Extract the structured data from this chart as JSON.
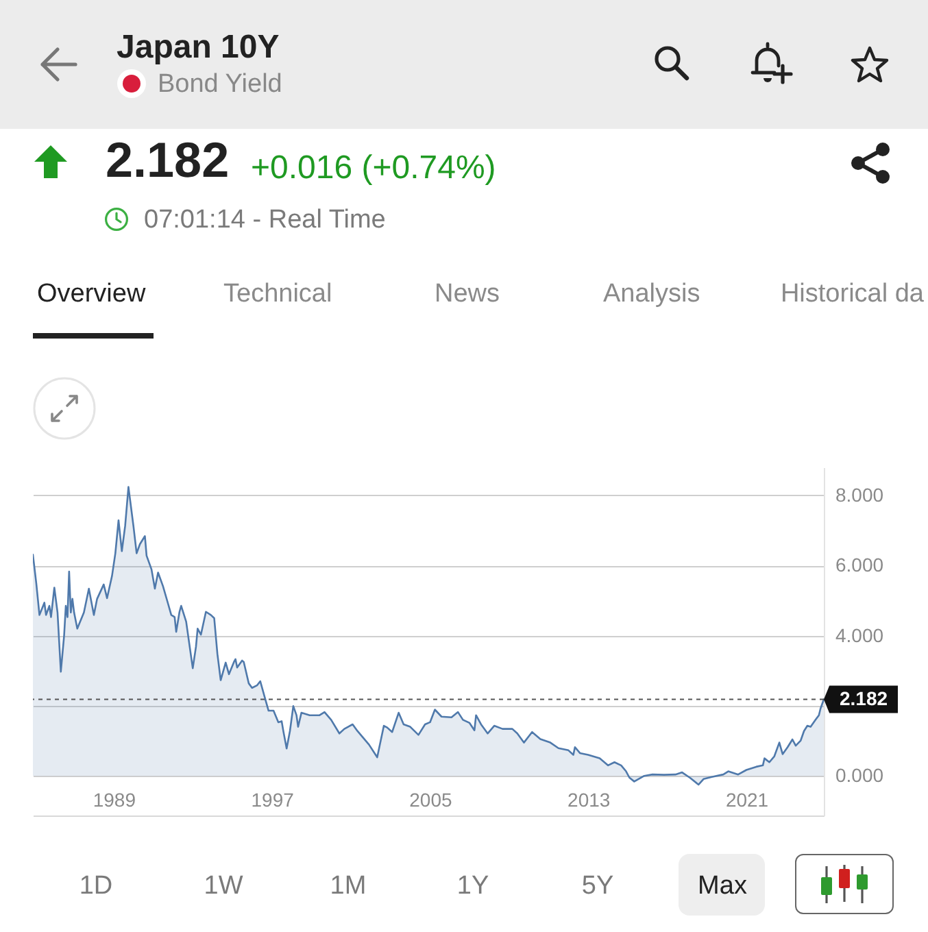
{
  "chart_data": {
    "type": "area",
    "title": "Japan 10Y",
    "subtitle": "Bond Yield",
    "annotations": [
      "2.182",
      "+0.016 (+0.74%)",
      "07:01:14 - Real Time",
      "Overview",
      "Technical",
      "News",
      "Analysis",
      "Historical da",
      "1D",
      "1W",
      "1M",
      "1Y",
      "5Y",
      "Max"
    ],
    "x": [
      "1984-12",
      "1985-02",
      "1985-04",
      "1985-07",
      "1985-08",
      "1985-10",
      "1985-11",
      "1986-01",
      "1986-03",
      "1986-05",
      "1986-07",
      "1986-08",
      "1986-09",
      "1986-10",
      "1986-11",
      "1986-12",
      "1987-01",
      "1987-03",
      "1987-07",
      "1987-10",
      "1988-01",
      "1988-03",
      "1988-07",
      "1988-09",
      "1988-12",
      "1989-02",
      "1989-04",
      "1989-06",
      "1989-08",
      "1989-10",
      "1990-01",
      "1990-03",
      "1990-05",
      "1990-08",
      "1990-09",
      "1990-12",
      "1991-02",
      "1991-04",
      "1991-07",
      "1991-10",
      "1991-12",
      "1992-02",
      "1992-03",
      "1992-05",
      "1992-06",
      "1992-09",
      "1993-01",
      "1993-03",
      "1993-04",
      "1993-06",
      "1993-09",
      "1993-12",
      "1994-02",
      "1994-04",
      "1994-06",
      "1994-09",
      "1994-11",
      "1995-02",
      "1995-03",
      "1995-04",
      "1995-07",
      "1995-08",
      "1995-11",
      "1996-01",
      "1996-04",
      "1996-06",
      "1996-09",
      "1996-11",
      "1997-02",
      "1997-05",
      "1997-07",
      "1997-08",
      "1997-10",
      "1997-12",
      "1998-02",
      "1998-04",
      "1998-05",
      "1998-07",
      "1998-12",
      "1999-06",
      "1999-09",
      "2000-01",
      "2000-06",
      "2000-09",
      "2001-02",
      "2001-05",
      "2001-12",
      "2002-05",
      "2002-09",
      "2002-11",
      "2003-02",
      "2003-06",
      "2003-09",
      "2004-01",
      "2004-06",
      "2004-10",
      "2005-01",
      "2005-04",
      "2005-08",
      "2006-02",
      "2006-06",
      "2006-09",
      "2007-01",
      "2007-04",
      "2007-05",
      "2007-08",
      "2007-12",
      "2008-04",
      "2008-09",
      "2009-03",
      "2009-06",
      "2009-10",
      "2010-03",
      "2010-08",
      "2011-02",
      "2011-07",
      "2012-01",
      "2012-04",
      "2012-05",
      "2012-08",
      "2013-01",
      "2013-08",
      "2014-01",
      "2014-05",
      "2014-09",
      "2014-12",
      "2015-02",
      "2015-05",
      "2015-11",
      "2016-04",
      "2016-11",
      "2017-06",
      "2017-10",
      "2018-03",
      "2018-08",
      "2018-11",
      "2019-04",
      "2019-11",
      "2020-02",
      "2020-08",
      "2021-01",
      "2021-07",
      "2021-11",
      "2021-12",
      "2022-03",
      "2022-06",
      "2022-09",
      "2022-11",
      "2023-02",
      "2023-05",
      "2023-07",
      "2023-10",
      "2023-12",
      "2024-02",
      "2024-04",
      "2024-07",
      "2024-09",
      "2024-10",
      "2024-12"
    ],
    "values": [
      6.31,
      5.5,
      4.59,
      4.94,
      4.59,
      4.85,
      4.53,
      5.37,
      4.66,
      2.97,
      4.01,
      4.85,
      4.53,
      5.83,
      4.66,
      5.05,
      4.66,
      4.2,
      4.66,
      5.34,
      4.59,
      5.05,
      5.46,
      5.07,
      5.7,
      6.35,
      7.29,
      6.41,
      7.13,
      8.24,
      7.13,
      6.35,
      6.61,
      6.84,
      6.28,
      5.89,
      5.34,
      5.8,
      5.41,
      4.92,
      4.59,
      4.53,
      4.11,
      4.68,
      4.85,
      4.4,
      3.07,
      3.68,
      4.2,
      4.03,
      4.68,
      4.59,
      4.5,
      3.48,
      2.73,
      3.23,
      2.9,
      3.25,
      3.33,
      3.09,
      3.29,
      3.25,
      2.64,
      2.51,
      2.58,
      2.7,
      2.19,
      1.86,
      1.86,
      1.53,
      1.56,
      1.28,
      0.78,
      1.28,
      1.99,
      1.73,
      1.4,
      1.8,
      1.73,
      1.73,
      1.82,
      1.6,
      1.21,
      1.34,
      1.47,
      1.28,
      0.89,
      0.53,
      1.43,
      1.38,
      1.25,
      1.8,
      1.47,
      1.4,
      1.17,
      1.47,
      1.53,
      1.89,
      1.69,
      1.67,
      1.82,
      1.6,
      1.51,
      1.3,
      1.73,
      1.47,
      1.21,
      1.43,
      1.34,
      1.34,
      1.21,
      0.95,
      1.25,
      1.05,
      0.95,
      0.79,
      0.73,
      0.6,
      0.82,
      0.65,
      0.6,
      0.5,
      0.3,
      0.39,
      0.3,
      0.13,
      -0.05,
      -0.16,
      0.0,
      0.04,
      0.03,
      0.04,
      0.1,
      -0.06,
      -0.25,
      -0.09,
      -0.03,
      0.04,
      0.13,
      0.04,
      0.17,
      0.26,
      0.3,
      0.5,
      0.39,
      0.56,
      0.95,
      0.62,
      0.82,
      1.04,
      0.86,
      1.01,
      1.28,
      1.43,
      1.4,
      1.6,
      1.73,
      1.92,
      2.182
    ],
    "color": "#4f79ab",
    "xlim": [
      "1984-12",
      "2024-12"
    ],
    "xticks": [
      "1989",
      "1997",
      "2005",
      "2013",
      "2021"
    ],
    "ylim": [
      -1.13,
      8.8
    ],
    "yticks": [
      {
        "value": 0,
        "label": "0.000"
      },
      {
        "value": 2,
        "label": null
      },
      {
        "value": 4,
        "label": "4.000"
      },
      {
        "value": 6,
        "label": "6.000"
      },
      {
        "value": 8,
        "label": "8.000"
      }
    ],
    "grid": "y",
    "ref_lines": [
      {
        "axis": "y",
        "value": 2.182,
        "label": "2.182",
        "color": "#555555",
        "line_style": "dashed"
      }
    ]
  }
}
